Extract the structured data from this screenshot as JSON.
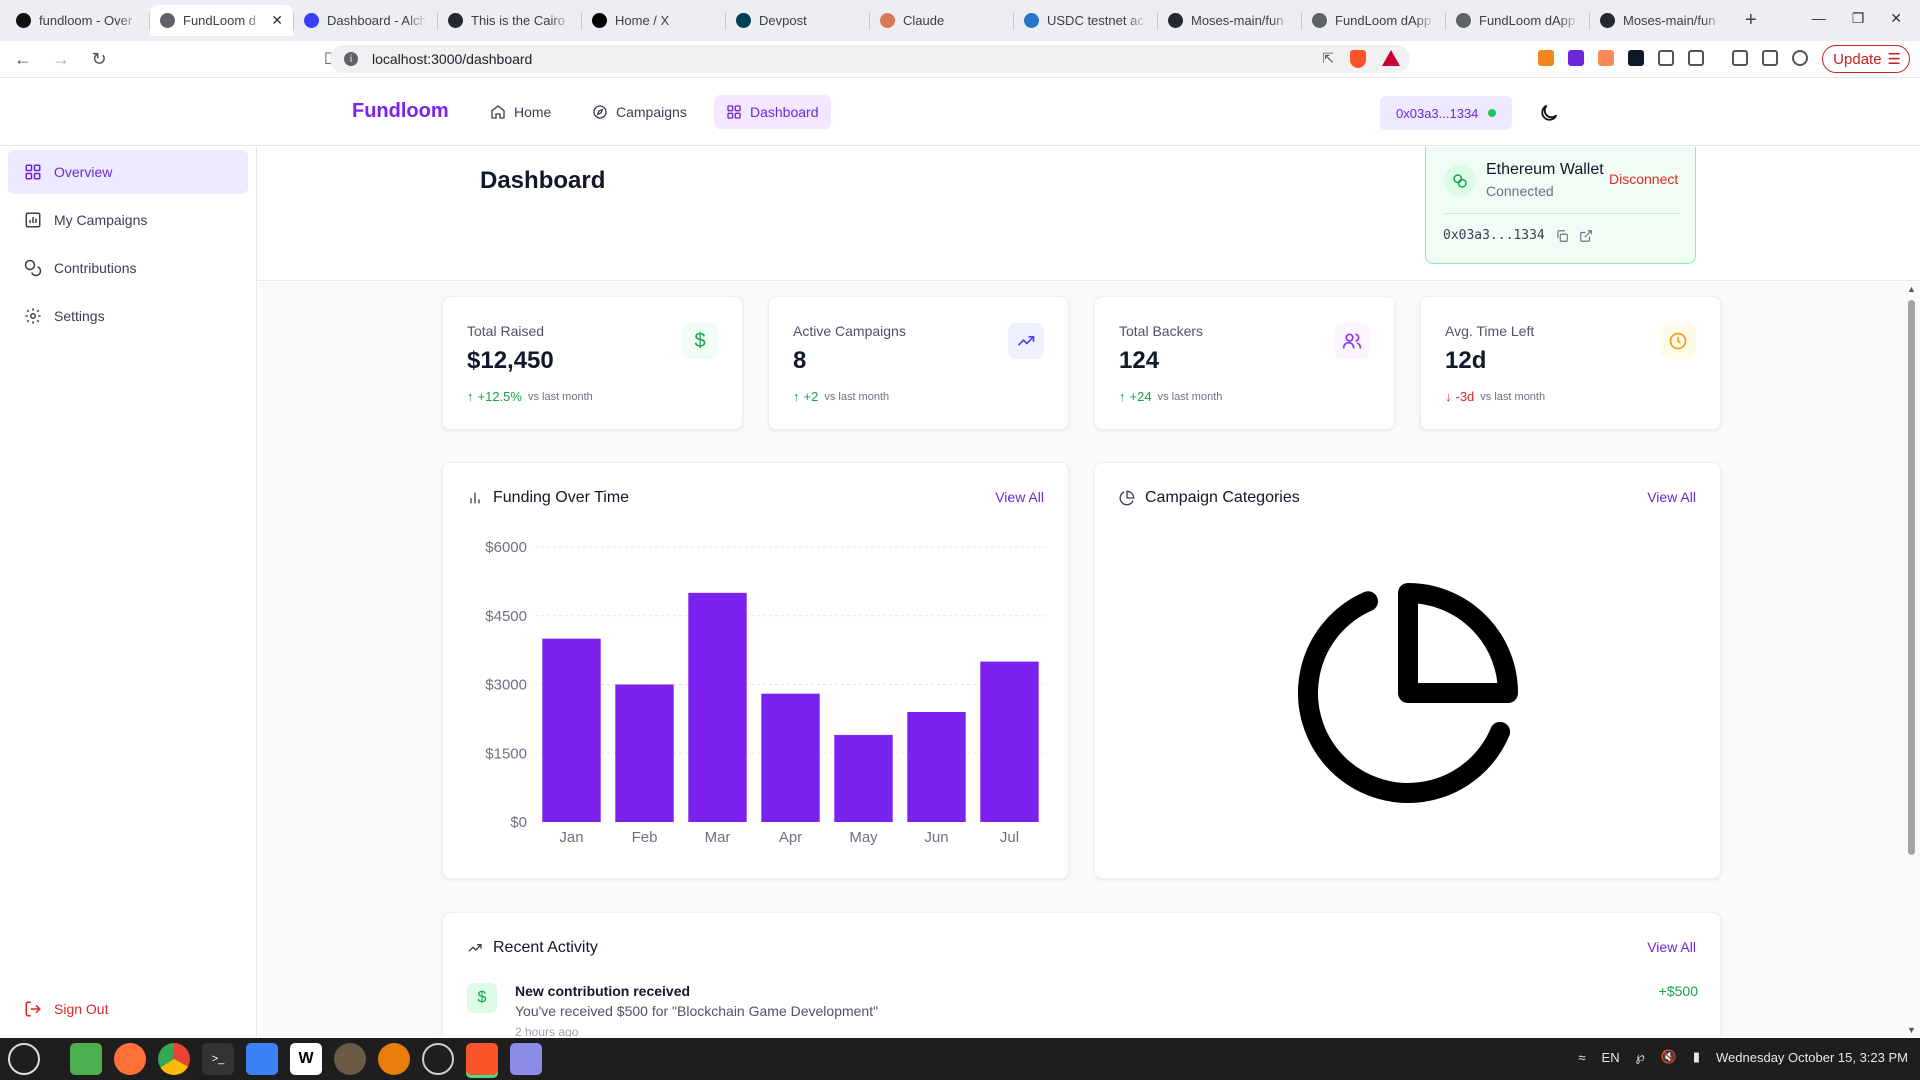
{
  "browser": {
    "tabs": [
      {
        "title": "fundloom - Over",
        "active": false,
        "icon": "black-dot-icon"
      },
      {
        "title": "FundLoom d",
        "active": true,
        "icon": "globe-icon"
      },
      {
        "title": "Dashboard - Alch",
        "active": false,
        "icon": "alchemy-icon"
      },
      {
        "title": "This is the Cairo",
        "active": false,
        "icon": "github-icon"
      },
      {
        "title": "Home / X",
        "active": false,
        "icon": "x-icon"
      },
      {
        "title": "Devpost",
        "active": false,
        "icon": "devpost-icon"
      },
      {
        "title": "Claude",
        "active": false,
        "icon": "claude-icon"
      },
      {
        "title": "USDC testnet ac",
        "active": false,
        "icon": "usdc-icon"
      },
      {
        "title": "Moses-main/fun",
        "active": false,
        "icon": "github-icon"
      },
      {
        "title": "FundLoom dApp",
        "active": false,
        "icon": "globe-icon"
      },
      {
        "title": "FundLoom dApp",
        "active": false,
        "icon": "globe-icon"
      },
      {
        "title": "Moses-main/fun",
        "active": false,
        "icon": "github-icon"
      }
    ],
    "url": "localhost:3000/dashboard",
    "update_label": "Update"
  },
  "header": {
    "brand": "Fundloom",
    "nav": [
      {
        "label": "Home",
        "icon": "home-icon",
        "active": false
      },
      {
        "label": "Campaigns",
        "icon": "compass-icon",
        "active": false
      },
      {
        "label": "Dashboard",
        "icon": "grid-icon",
        "active": true
      }
    ],
    "wallet_short": "0x03a3...1334"
  },
  "wallet_popover": {
    "name": "Ethereum Wallet",
    "status": "Connected",
    "disconnect_label": "Disconnect",
    "address": "0x03a3...1334"
  },
  "sidebar": {
    "items": [
      {
        "label": "Overview",
        "icon": "grid-icon",
        "active": true
      },
      {
        "label": "My Campaigns",
        "icon": "campaign-icon",
        "active": false
      },
      {
        "label": "Contributions",
        "icon": "coins-icon",
        "active": false
      },
      {
        "label": "Settings",
        "icon": "gear-icon",
        "active": false
      }
    ],
    "sign_out_label": "Sign Out"
  },
  "page": {
    "title": "Dashboard"
  },
  "stats": [
    {
      "label": "Total Raised",
      "value": "$12,450",
      "delta": "+12.5%",
      "direction": "up",
      "context": "vs last month",
      "icon": "dollar-icon",
      "color": "#16a34a",
      "bg": "#f0fdf4"
    },
    {
      "label": "Active Campaigns",
      "value": "8",
      "delta": "+2",
      "direction": "up",
      "context": "vs last month",
      "icon": "trend-up-icon",
      "color": "#4f46e5",
      "bg": "#eef2ff"
    },
    {
      "label": "Total Backers",
      "value": "124",
      "delta": "+24",
      "direction": "up",
      "context": "vs last month",
      "icon": "users-icon",
      "color": "#9333ea",
      "bg": "#faf5ff"
    },
    {
      "label": "Avg. Time Left",
      "value": "12d",
      "delta": "-3d",
      "direction": "down",
      "context": "vs last month",
      "icon": "clock-icon",
      "color": "#f59e0b",
      "bg": "#fffbeb"
    }
  ],
  "funding_card": {
    "title": "Funding Over Time",
    "view_all": "View All"
  },
  "chart_data": {
    "type": "bar",
    "categories": [
      "Jan",
      "Feb",
      "Mar",
      "Apr",
      "May",
      "Jun",
      "Jul"
    ],
    "values": [
      4000,
      3000,
      5000,
      2800,
      1900,
      2400,
      3500
    ],
    "yticks": [
      "$0",
      "$1500",
      "$3000",
      "$4500",
      "$6000"
    ],
    "ylim": [
      0,
      6000
    ],
    "color": "#7c22ef",
    "grid": true
  },
  "categories_card": {
    "title": "Campaign Categories",
    "view_all": "View All"
  },
  "activity_card": {
    "title": "Recent Activity",
    "view_all": "View All",
    "items": [
      {
        "title": "New contribution received",
        "desc": "You've received $500 for \"Blockchain Game Development\"",
        "time": "2 hours ago",
        "amount": "+$500"
      }
    ]
  },
  "taskbar": {
    "lang": "EN",
    "datetime": "Wednesday October 15, 3:23 PM"
  }
}
